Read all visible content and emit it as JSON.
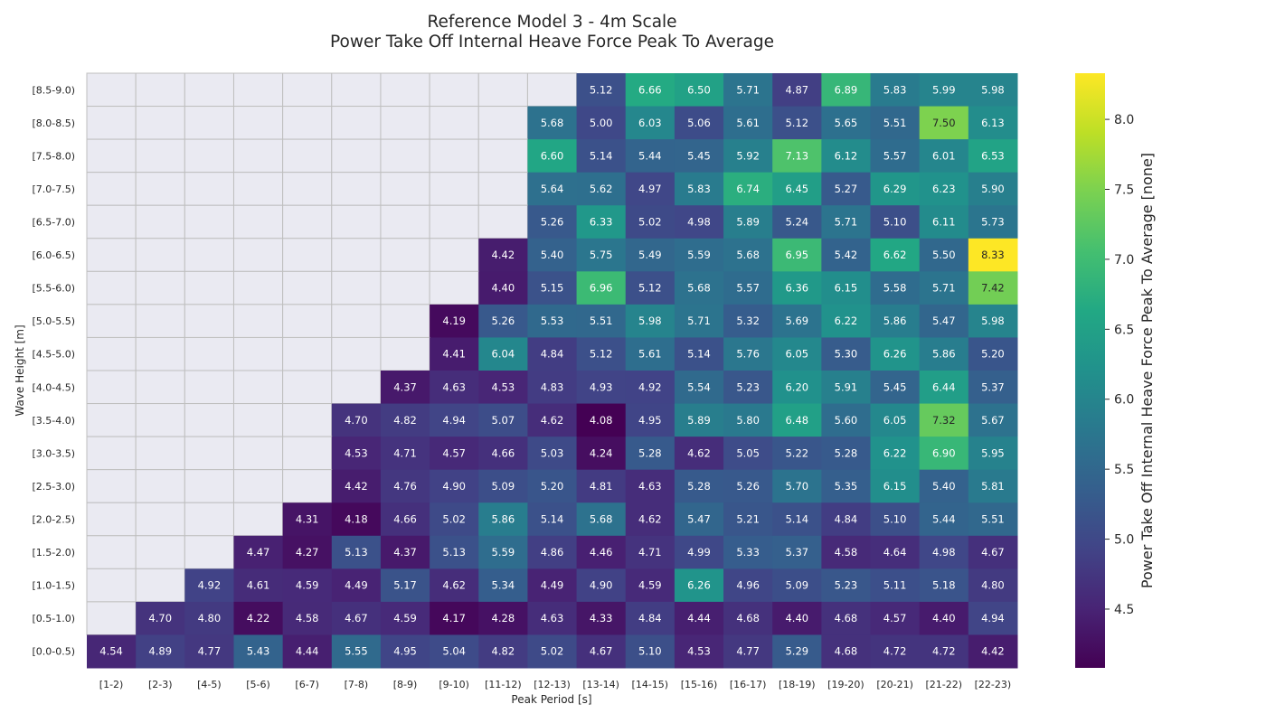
{
  "chart_data": {
    "type": "heatmap",
    "title": "Reference Model 3 - 4m Scale",
    "subtitle": "Power Take Off Internal Heave Force Peak To Average",
    "xlabel": "Peak Period [s]",
    "ylabel": "Wave Height [m]",
    "colorbar_label": "Power Take Off Internal Heave Force Peak To Average [none]",
    "colormap": "viridis",
    "colorbar_range": [
      4.08,
      8.33
    ],
    "colorbar_ticks": [
      4.5,
      5.0,
      5.5,
      6.0,
      6.5,
      7.0,
      7.5,
      8.0
    ],
    "missing_color": "#eaeaf2",
    "grid_color": "#bfbfbf",
    "x_categories": [
      "[1-2)",
      "[2-3)",
      "[4-5)",
      "[5-6)",
      "[6-7)",
      "[7-8)",
      "[8-9)",
      "[9-10)",
      "[11-12)",
      "[12-13)",
      "[13-14)",
      "[14-15)",
      "[15-16)",
      "[16-17)",
      "[18-19)",
      "[19-20)",
      "[20-21)",
      "[21-22)",
      "[22-23)"
    ],
    "y_categories": [
      "[8.5-9.0)",
      "[8.0-8.5)",
      "[7.5-8.0)",
      "[7.0-7.5)",
      "[6.5-7.0)",
      "[6.0-6.5)",
      "[5.5-6.0)",
      "[5.0-5.5)",
      "[4.5-5.0)",
      "[4.0-4.5)",
      "[3.5-4.0)",
      "[3.0-3.5)",
      "[2.5-3.0)",
      "[2.0-2.5)",
      "[1.5-2.0)",
      "[1.0-1.5)",
      "[0.5-1.0)",
      "[0.0-0.5)"
    ],
    "values": [
      [
        null,
        null,
        null,
        null,
        null,
        null,
        null,
        null,
        null,
        null,
        5.12,
        6.66,
        6.5,
        5.71,
        4.87,
        6.89,
        5.83,
        5.99,
        5.98
      ],
      [
        null,
        null,
        null,
        null,
        null,
        null,
        null,
        null,
        null,
        5.68,
        5.0,
        6.03,
        5.06,
        5.61,
        5.12,
        5.65,
        5.51,
        7.5,
        6.13
      ],
      [
        null,
        null,
        null,
        null,
        null,
        null,
        null,
        null,
        null,
        6.6,
        5.14,
        5.44,
        5.45,
        5.92,
        7.13,
        6.12,
        5.57,
        6.01,
        6.53
      ],
      [
        null,
        null,
        null,
        null,
        null,
        null,
        null,
        null,
        null,
        5.64,
        5.62,
        4.97,
        5.83,
        6.74,
        6.45,
        5.27,
        6.29,
        6.23,
        5.9
      ],
      [
        null,
        null,
        null,
        null,
        null,
        null,
        null,
        null,
        null,
        5.26,
        6.33,
        5.02,
        4.98,
        5.89,
        5.24,
        5.71,
        5.1,
        6.11,
        5.73
      ],
      [
        null,
        null,
        null,
        null,
        null,
        null,
        null,
        null,
        4.42,
        5.4,
        5.75,
        5.49,
        5.59,
        5.68,
        6.95,
        5.42,
        6.62,
        5.5,
        8.33
      ],
      [
        null,
        null,
        null,
        null,
        null,
        null,
        null,
        null,
        4.4,
        5.15,
        6.96,
        5.12,
        5.68,
        5.57,
        6.36,
        6.15,
        5.58,
        5.71,
        7.42
      ],
      [
        null,
        null,
        null,
        null,
        null,
        null,
        null,
        4.19,
        5.26,
        5.53,
        5.51,
        5.98,
        5.71,
        5.32,
        5.69,
        6.22,
        5.86,
        5.47,
        5.98
      ],
      [
        null,
        null,
        null,
        null,
        null,
        null,
        null,
        4.41,
        6.04,
        4.84,
        5.12,
        5.61,
        5.14,
        5.76,
        6.05,
        5.3,
        6.26,
        5.86,
        5.2
      ],
      [
        null,
        null,
        null,
        null,
        null,
        null,
        4.37,
        4.63,
        4.53,
        4.83,
        4.93,
        4.92,
        5.54,
        5.23,
        6.2,
        5.91,
        5.45,
        6.44,
        5.37
      ],
      [
        null,
        null,
        null,
        null,
        null,
        4.7,
        4.82,
        4.94,
        5.07,
        4.62,
        4.08,
        4.95,
        5.89,
        5.8,
        6.48,
        5.6,
        6.05,
        7.32,
        5.67
      ],
      [
        null,
        null,
        null,
        null,
        null,
        4.53,
        4.71,
        4.57,
        4.66,
        5.03,
        4.24,
        5.28,
        4.62,
        5.05,
        5.22,
        5.28,
        6.22,
        6.9,
        5.95
      ],
      [
        null,
        null,
        null,
        null,
        null,
        4.42,
        4.76,
        4.9,
        5.09,
        5.2,
        4.81,
        4.63,
        5.28,
        5.26,
        5.7,
        5.35,
        6.15,
        5.4,
        5.81
      ],
      [
        null,
        null,
        null,
        null,
        4.31,
        4.18,
        4.66,
        5.02,
        5.86,
        5.14,
        5.68,
        4.62,
        5.47,
        5.21,
        5.14,
        4.84,
        5.1,
        5.44,
        5.51
      ],
      [
        null,
        null,
        null,
        4.47,
        4.27,
        5.13,
        4.37,
        5.13,
        5.59,
        4.86,
        4.46,
        4.71,
        4.99,
        5.33,
        5.37,
        4.58,
        4.64,
        4.98,
        4.67
      ],
      [
        null,
        null,
        4.92,
        4.61,
        4.59,
        4.49,
        5.17,
        4.62,
        5.34,
        4.49,
        4.9,
        4.59,
        6.26,
        4.96,
        5.09,
        5.23,
        5.11,
        5.18,
        4.8
      ],
      [
        null,
        4.7,
        4.8,
        4.22,
        4.58,
        4.67,
        4.59,
        4.17,
        4.28,
        4.63,
        4.33,
        4.84,
        4.44,
        4.68,
        4.4,
        4.68,
        4.57,
        4.4,
        4.94
      ],
      [
        4.54,
        4.89,
        4.77,
        5.43,
        4.44,
        5.55,
        4.95,
        5.04,
        4.82,
        5.02,
        4.67,
        5.1,
        4.53,
        4.77,
        5.29,
        4.68,
        4.72,
        4.72,
        4.42
      ]
    ]
  }
}
